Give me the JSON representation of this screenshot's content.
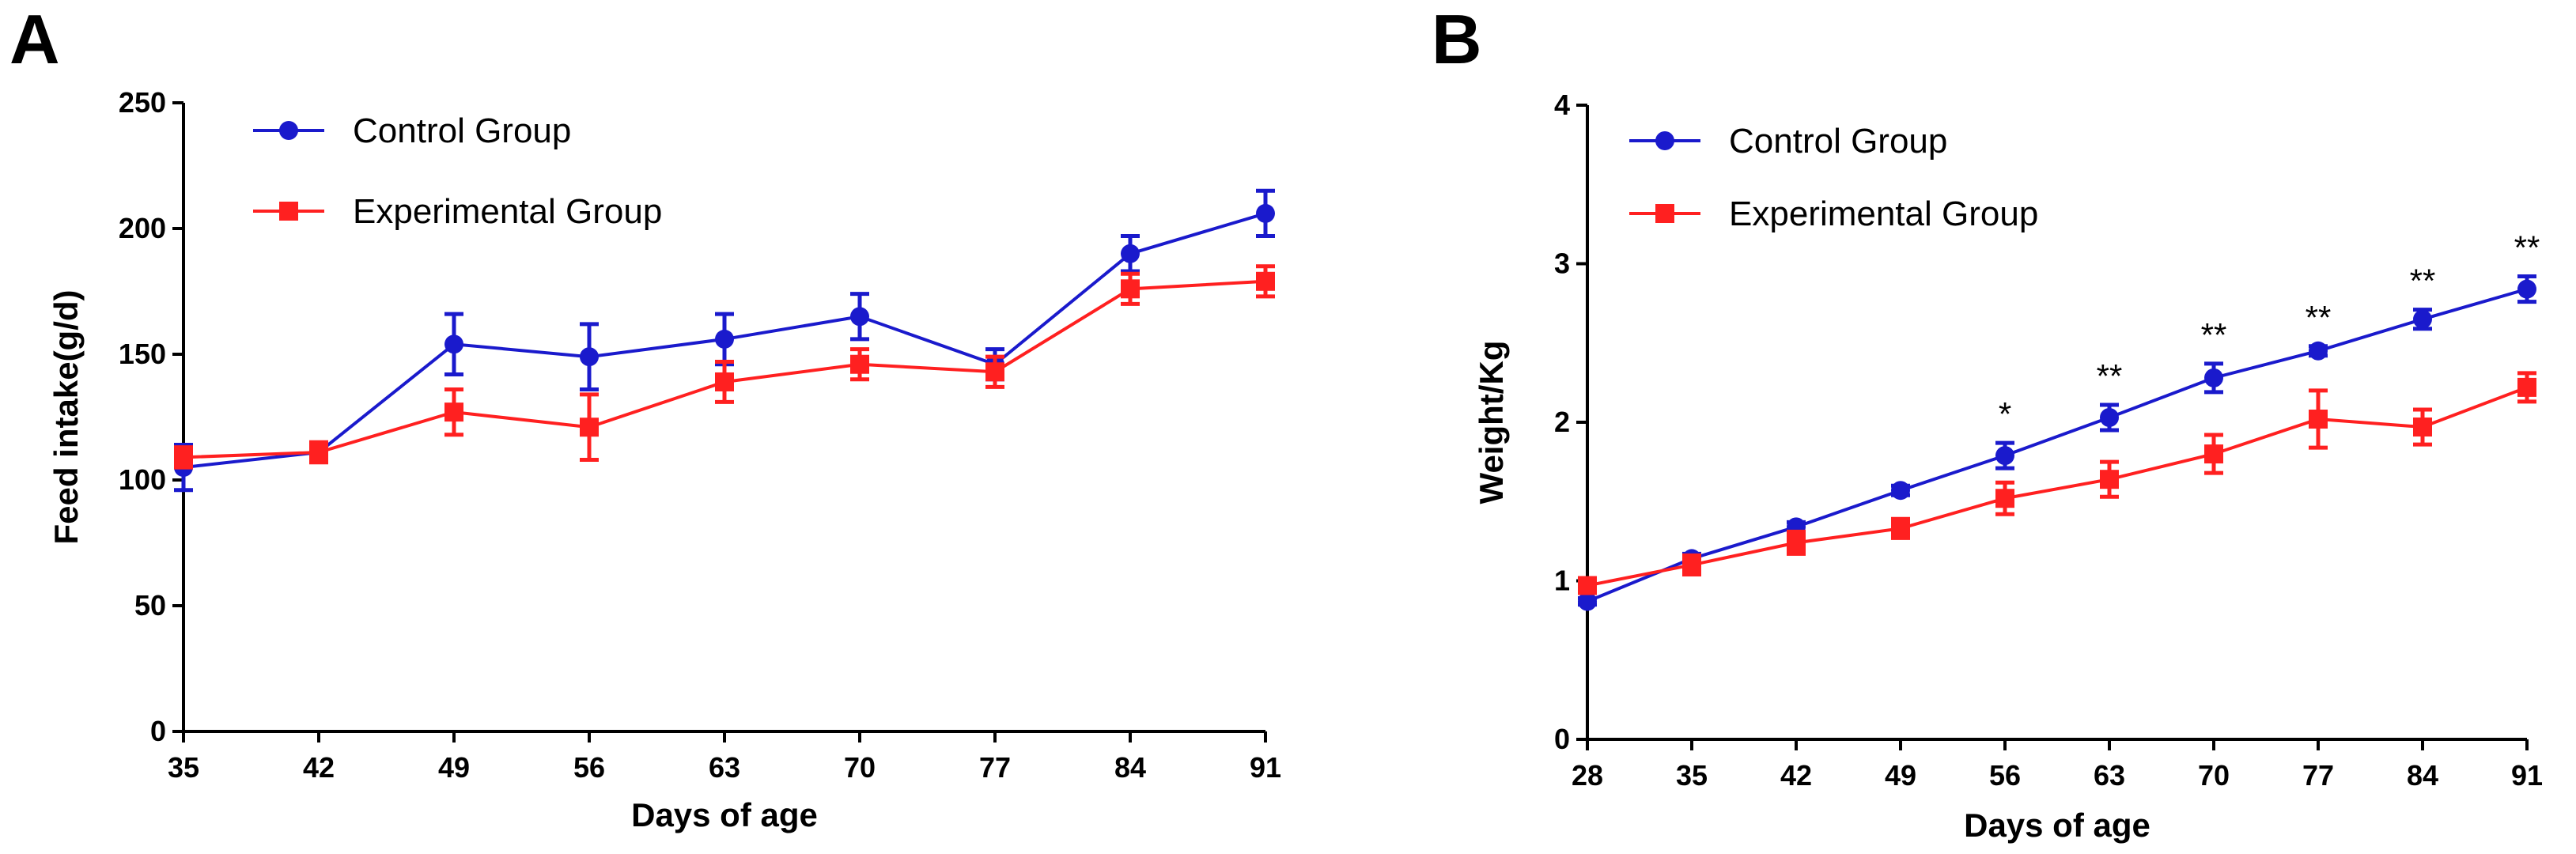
{
  "chart_data": [
    {
      "panel": "A",
      "type": "line",
      "xlabel": "Days of age",
      "ylabel": "Feed intake(g/d)",
      "x": [
        35,
        42,
        49,
        56,
        63,
        70,
        77,
        84,
        91
      ],
      "xticks": [
        "35",
        "42",
        "49",
        "56",
        "63",
        "70",
        "77",
        "84",
        "91"
      ],
      "xlim": [
        35,
        91
      ],
      "ylim": [
        0,
        250
      ],
      "yticks": [
        "0",
        "50",
        "100",
        "150",
        "200",
        "250"
      ],
      "legend_position": "top-left",
      "series": [
        {
          "name": "Control Group",
          "color": "#1a1acc",
          "marker": "circle",
          "values": [
            105,
            111,
            154,
            149,
            156,
            165,
            146,
            190,
            206
          ],
          "errors": [
            9,
            3,
            12,
            13,
            10,
            9,
            6,
            7,
            9
          ]
        },
        {
          "name": "Experimental Group",
          "color": "#ff2020",
          "marker": "square",
          "values": [
            109,
            111,
            127,
            121,
            139,
            146,
            143,
            176,
            179
          ],
          "errors": [
            4,
            4,
            9,
            13,
            8,
            6,
            6,
            6,
            6
          ]
        }
      ]
    },
    {
      "panel": "B",
      "type": "line",
      "xlabel": "Days of age",
      "ylabel": "Weight/Kg",
      "x": [
        28,
        35,
        42,
        49,
        56,
        63,
        70,
        77,
        84,
        91
      ],
      "xticks": [
        "28",
        "35",
        "42",
        "49",
        "56",
        "63",
        "70",
        "77",
        "84",
        "91"
      ],
      "xlim": [
        28,
        91
      ],
      "ylim": [
        0,
        4
      ],
      "yticks": [
        "0",
        "1",
        "2",
        "3",
        "4"
      ],
      "legend_position": "top-left",
      "series": [
        {
          "name": "Control Group",
          "color": "#1a1acc",
          "marker": "circle",
          "values": [
            0.87,
            1.14,
            1.34,
            1.57,
            1.79,
            2.03,
            2.28,
            2.45,
            2.65,
            2.84
          ],
          "errors": [
            0.02,
            0.03,
            0.03,
            0.03,
            0.08,
            0.08,
            0.09,
            0.03,
            0.06,
            0.08
          ]
        },
        {
          "name": "Experimental Group",
          "color": "#ff2020",
          "marker": "square",
          "values": [
            0.97,
            1.1,
            1.24,
            1.33,
            1.52,
            1.64,
            1.8,
            2.02,
            1.97,
            2.22
          ],
          "errors": [
            0.03,
            0.06,
            0.07,
            0.06,
            0.1,
            0.11,
            0.12,
            0.18,
            0.11,
            0.09
          ]
        }
      ],
      "annotations": [
        {
          "x": 56,
          "text": "*"
        },
        {
          "x": 63,
          "text": "**"
        },
        {
          "x": 70,
          "text": "**"
        },
        {
          "x": 77,
          "text": "**"
        },
        {
          "x": 84,
          "text": "**"
        },
        {
          "x": 91,
          "text": "**"
        }
      ]
    }
  ]
}
